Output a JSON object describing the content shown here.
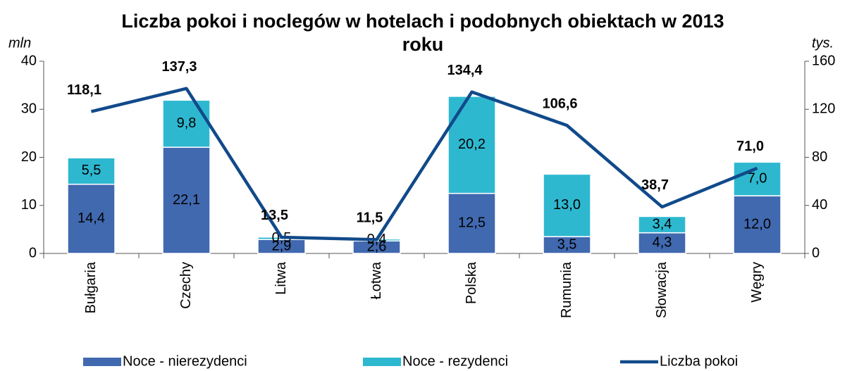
{
  "chart_data": {
    "type": "bar",
    "title": "Liczba pokoi i noclegów w hotelach i podobnych obiektach w 2013 roku",
    "y_label": "mln",
    "y2_label": "tys.",
    "categories": [
      "Bułgaria",
      "Czechy",
      "Litwa",
      "Łotwa",
      "Polska",
      "Rumunia",
      "Słowacja",
      "Węgry"
    ],
    "series": [
      {
        "name": "Noce - nierezydenci",
        "type": "bar",
        "color": "#4169b0",
        "values": [
          14.4,
          22.1,
          2.9,
          2.6,
          12.5,
          3.5,
          4.3,
          12.0
        ],
        "value_labels": [
          "14,4",
          "22,1",
          "2,9",
          "2,6",
          "12,5",
          "3,5",
          "4,3",
          "12,0"
        ]
      },
      {
        "name": "Noce - rezydenci",
        "type": "bar",
        "color": "#2eb8d0",
        "values": [
          5.5,
          9.8,
          0.5,
          0.4,
          20.2,
          13.0,
          3.4,
          7.0
        ],
        "value_labels": [
          "5,5",
          "9,8",
          "0,5",
          "0,4",
          "20,2",
          "13,0",
          "3,4",
          "7,0"
        ]
      },
      {
        "name": "Liczba pokoi",
        "type": "line",
        "axis": "y2",
        "color": "#114a8a",
        "values": [
          118.1,
          137.3,
          13.5,
          11.5,
          134.4,
          106.6,
          38.7,
          71.0
        ],
        "value_labels": [
          "118,1",
          "137,3",
          "13,5",
          "11,5",
          "134,4",
          "106,6",
          "38,7",
          "71,0"
        ]
      }
    ],
    "ylim": [
      0,
      40
    ],
    "yticks": [
      0,
      10,
      20,
      30,
      40
    ],
    "y2lim": [
      0,
      160
    ],
    "y2ticks": [
      0,
      40,
      80,
      120,
      160
    ],
    "stacked": true,
    "legend": "bottom"
  }
}
